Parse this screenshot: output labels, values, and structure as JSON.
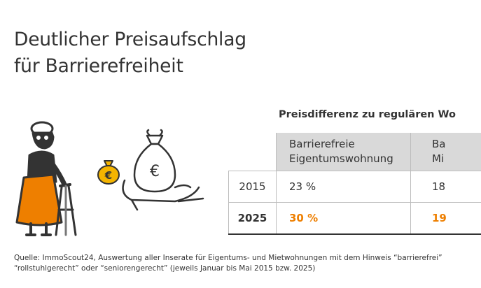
{
  "title": {
    "line1": "Deutlicher Preisaufschlag",
    "line2": "für Barrierefreiheit"
  },
  "illustration": {
    "icons": [
      "elderly-woman-with-walker-icon",
      "euro-coin-bag-icon",
      "money-bag-in-hand-icon"
    ],
    "coin_symbol": "€",
    "bag_symbol": "€"
  },
  "caption": "Preisdifferenz zu regulären Wo",
  "table": {
    "headers": {
      "col1_line1": "Barrierefreie",
      "col1_line2": "Eigentumswohnung",
      "col2_line1": "Ba",
      "col2_line2": "Mi"
    },
    "rows": [
      {
        "year": "2015",
        "col1": "23 %",
        "col2": "18"
      },
      {
        "year": "2025",
        "col1": "30 %",
        "col2": "19"
      }
    ]
  },
  "source": {
    "line1": "Quelle: ImmoScout24, Auswertung aller Inserate für Eigentums- und Mietwohnungen mit dem Hinweis “barrierefrei”",
    "line2": "“rollstuhlgerecht” oder “seniorengerecht” (jeweils Januar bis Mai 2015 bzw. 2025)"
  },
  "colors": {
    "accent": "#ee7f00",
    "coin": "#f4b400",
    "text": "#333333",
    "header_bg": "#d9d9d9"
  }
}
